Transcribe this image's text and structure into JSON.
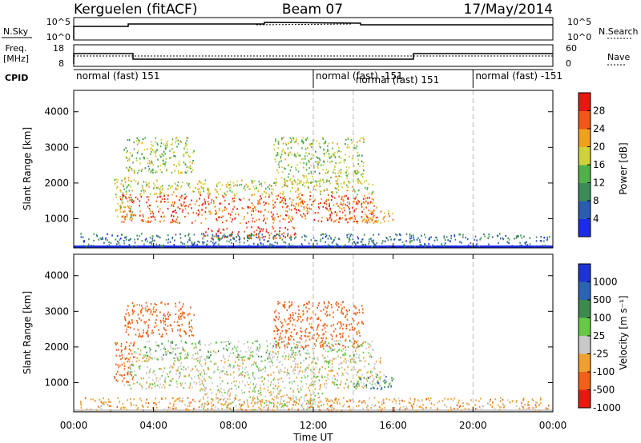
{
  "header": {
    "station": "Kerguelen (fitACF)",
    "beam": "Beam 07",
    "date": "17/May/2014"
  },
  "strip_labels": {
    "nsky": "N.Sky",
    "nsky_top": "10^5",
    "nsky_bottom": "10^0",
    "nsearch": "N.Search",
    "nsearch_top": "10^5",
    "nsearch_bottom": "10^0",
    "freq_line1": "Freq.",
    "freq_line2": "[MHz]",
    "freq_top": "18",
    "freq_bottom": "8",
    "nave": "Nave",
    "nave_top": "60",
    "nave_bottom": "0",
    "cpid": "CPID"
  },
  "cpid_segments": [
    {
      "label": "normal (fast) 151",
      "start_hr": 0.0,
      "row": 0
    },
    {
      "label": "normal (fast) -151",
      "start_hr": 12.0,
      "row": 0
    },
    {
      "label": "normal (fast) 151",
      "start_hr": 14.0,
      "row": 1
    },
    {
      "label": "normal (fast) -151",
      "start_hr": 20.0,
      "row": 0
    }
  ],
  "chart_data": [
    {
      "type": "heatmap",
      "quantity": "power",
      "ylabel": "Slant Range [km]",
      "xlabel": "",
      "xlim_hr": [
        0,
        24
      ],
      "ylim_km": [
        180,
        4600
      ],
      "yticks": [
        "1000",
        "2000",
        "3000",
        "4000"
      ],
      "ytick_values": [
        1000,
        2000,
        3000,
        4000
      ],
      "colorbar_label": "Power [dB]",
      "colorbar_ticks": [
        "4",
        "8",
        "12",
        "16",
        "20",
        "24",
        "28"
      ],
      "colorbar_tick_values": [
        4,
        8,
        12,
        16,
        20,
        24,
        28
      ],
      "colorbar_range": [
        0,
        32
      ],
      "colorbar_colors": [
        "#1c2ce6",
        "#2a5db0",
        "#3c8a5a",
        "#50b04a",
        "#cfd23c",
        "#f0a020",
        "#f05818",
        "#e41a10"
      ],
      "dashed_hr": [
        12,
        14,
        20
      ],
      "regions": [
        {
          "t0": 2.3,
          "t1": 15.2,
          "r0": 900,
          "r1": 1700,
          "level": 26
        },
        {
          "t0": 2.0,
          "t1": 3.0,
          "r0": 1000,
          "r1": 2200,
          "level": 18
        },
        {
          "t0": 6.5,
          "t1": 11.2,
          "r0": 450,
          "r1": 800,
          "level": 28
        },
        {
          "t0": 3.0,
          "t1": 15.0,
          "r0": 1700,
          "r1": 2100,
          "level": 18
        },
        {
          "t0": 2.5,
          "t1": 6.0,
          "r0": 2300,
          "r1": 3300,
          "level": 16
        },
        {
          "t0": 10.0,
          "t1": 14.5,
          "r0": 2000,
          "r1": 3300,
          "level": 16
        },
        {
          "t0": 14.0,
          "t1": 16.0,
          "r0": 900,
          "r1": 1250,
          "level": 22
        },
        {
          "t0": 0.3,
          "t1": 23.8,
          "r0": 220,
          "r1": 600,
          "level": 8
        }
      ]
    },
    {
      "type": "heatmap",
      "quantity": "velocity",
      "ylabel": "Slant Range [km]",
      "xlabel": "Time UT",
      "xlim_hr": [
        0,
        24
      ],
      "ylim_km": [
        180,
        4600
      ],
      "xticks": [
        "00:00",
        "04:00",
        "08:00",
        "12:00",
        "16:00",
        "20:00",
        "00:00"
      ],
      "xtick_values": [
        0,
        4,
        8,
        12,
        16,
        20,
        24
      ],
      "yticks": [
        "1000",
        "2000",
        "3000",
        "4000"
      ],
      "ytick_values": [
        1000,
        2000,
        3000,
        4000
      ],
      "colorbar_label": "Velocity [m s⁻¹]",
      "colorbar_ticks": [
        "1000",
        "500",
        "100",
        "25",
        "-25",
        "-100",
        "-500",
        "-1000"
      ],
      "colorbar_colors": [
        "#1e34d2",
        "#2c64b4",
        "#3c8a50",
        "#66c846",
        "#c8c8c8",
        "#f0a030",
        "#f06018",
        "#e41a10"
      ],
      "dashed_hr": [
        12,
        14,
        20
      ],
      "regions": [
        {
          "t0": 2.5,
          "t1": 15.4,
          "r0": 850,
          "r1": 1750,
          "v": 0
        },
        {
          "t0": 6.3,
          "t1": 12.5,
          "r0": 250,
          "r1": 850,
          "v": 0
        },
        {
          "t0": 2.0,
          "t1": 3.0,
          "r0": 1000,
          "r1": 2200,
          "v": -200
        },
        {
          "t0": 3.0,
          "t1": 15.0,
          "r0": 1700,
          "r1": 2200,
          "v": 20
        },
        {
          "t0": 2.5,
          "t1": 6.0,
          "r0": 2300,
          "r1": 3300,
          "v": -150
        },
        {
          "t0": 10.0,
          "t1": 14.5,
          "r0": 2000,
          "r1": 3300,
          "v": -150
        },
        {
          "t0": 14.0,
          "t1": 16.0,
          "r0": 800,
          "r1": 1250,
          "v": 60
        },
        {
          "t0": 0.3,
          "t1": 23.8,
          "r0": 220,
          "r1": 600,
          "v": -60
        }
      ]
    }
  ]
}
